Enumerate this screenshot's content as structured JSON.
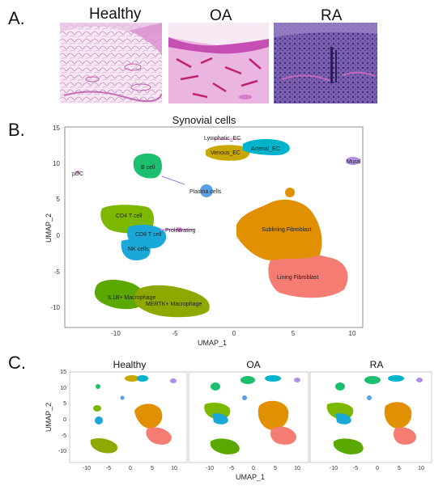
{
  "panel_a": {
    "label": "A.",
    "images": [
      {
        "title": "Healthy"
      },
      {
        "title": "OA"
      },
      {
        "title": "RA"
      }
    ]
  },
  "panel_b": {
    "label": "B.",
    "title": "Synovial cells",
    "xlabel": "UMAP_1",
    "ylabel": "UMAP_2",
    "xticks": [
      "-10",
      "-5",
      "0",
      "5",
      "10"
    ],
    "yticks": [
      "15",
      "10",
      "5",
      "0",
      "-5",
      "-10"
    ],
    "clusters": [
      "Lymphatic_EC",
      "Venous_EC",
      "Arterial_EC",
      "Mural",
      "pDC",
      "B cell",
      "Plasma cells",
      "CD4 T cell",
      "CD8 T cell",
      "Proliferating",
      "NK cells",
      "Sublining Fibroblast",
      "Lining Fibroblast",
      "IL1B+ Macrophage",
      "MERTK+ Macrophage"
    ]
  },
  "panel_c": {
    "label": "C.",
    "xlabel": "UMAP_1",
    "ylabel": "UMAP_2",
    "facets": [
      "Healthy",
      "OA",
      "RA"
    ],
    "xticks": [
      "-10",
      "-5",
      "0",
      "5",
      "10"
    ],
    "yticks": [
      "15",
      "10",
      "5",
      "0",
      "-5",
      "-10"
    ]
  },
  "colors": {
    "endothelial": "#00b4cc",
    "venous": "#c8a800",
    "mural": "#b08ee8",
    "pdc": "#e070c0",
    "b_cell": "#1cbf6e",
    "plasma": "#5aa0e8",
    "cd4": "#7cb800",
    "cd8": "#1aa8d8",
    "prolif": "#e080e0",
    "sublining": "#e09000",
    "lining": "#f47c72",
    "macrophage": "#5aa800",
    "macrophage2": "#8fa800"
  },
  "chart_data": [
    {
      "type": "scatter",
      "title": "Synovial cells",
      "xlabel": "UMAP_1",
      "ylabel": "UMAP_2",
      "xlim": [
        -14.5,
        12
      ],
      "ylim": [
        -12.5,
        15.5
      ],
      "clusters": [
        {
          "name": "Lymphatic_EC",
          "x": -0.5,
          "y": 12.6
        },
        {
          "name": "Venous_EC",
          "x": 0.8,
          "y": 11.3
        },
        {
          "name": "Arterial_EC",
          "x": 3.8,
          "y": 11.7
        },
        {
          "name": "Mural",
          "x": 10.3,
          "y": 10.5
        },
        {
          "name": "pDC",
          "x": -13.3,
          "y": 8.9
        },
        {
          "name": "B cell",
          "x": -7.8,
          "y": 9.8
        },
        {
          "name": "Plasma cells",
          "x": -2.8,
          "y": 6.1
        },
        {
          "name": "CD4 T cell",
          "x": -8.0,
          "y": 2.8
        },
        {
          "name": "CD8 T cell",
          "x": -7.0,
          "y": -0.1
        },
        {
          "name": "Proliferating",
          "x": -4.5,
          "y": 0.8
        },
        {
          "name": "NK cells",
          "x": -8.2,
          "y": -2.3
        },
        {
          "name": "Sublining Fibroblast",
          "x": 4.2,
          "y": 0.8
        },
        {
          "name": "Lining Fibroblast",
          "x": 5.2,
          "y": -6.3
        },
        {
          "name": "IL1B+ Macrophage",
          "x": -8.7,
          "y": -8.0
        },
        {
          "name": "MERTK+ Macrophage",
          "x": -5.0,
          "y": -9.3
        }
      ]
    }
  ]
}
